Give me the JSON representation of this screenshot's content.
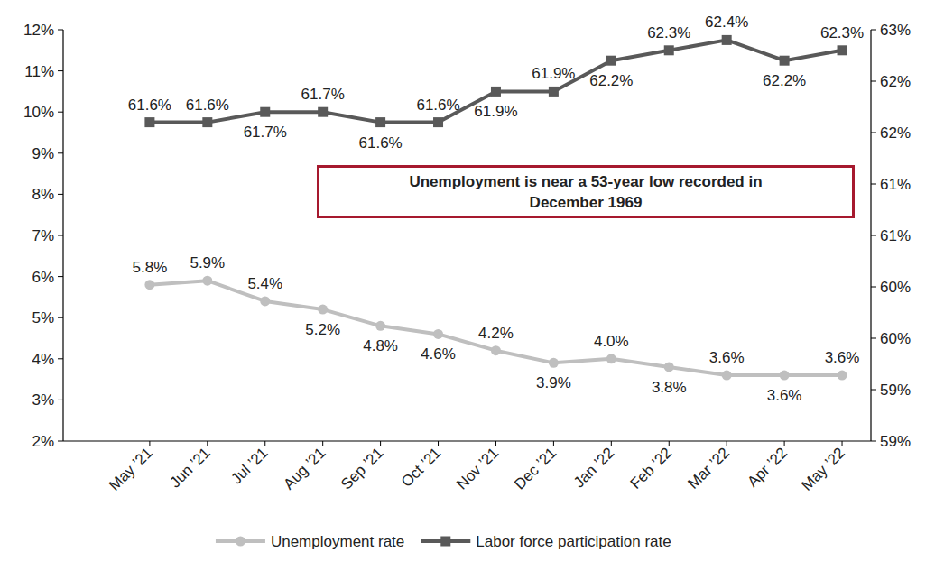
{
  "chart_data": {
    "type": "line",
    "annotation": "Unemployment is near a 53-year low recorded in December 1969",
    "categories": [
      "May ’21",
      "Jun ’21",
      "Jul ’21",
      "Aug ’21",
      "Sep ’21",
      "Oct ’21",
      "Nov ’21",
      "Dec ’21",
      "Jan ’22",
      "Feb ’22",
      "Mar ’22",
      "Apr ’22",
      "May ’22"
    ],
    "series": [
      {
        "name": "Unemployment rate",
        "color": "#bfbfbf",
        "marker": "circle",
        "values": [
          5.8,
          5.9,
          5.4,
          5.2,
          4.8,
          4.6,
          4.2,
          3.9,
          4.0,
          3.8,
          3.6,
          3.6,
          3.6
        ],
        "value_labels": [
          "5.8%",
          "5.9%",
          "5.4%",
          "5.2%",
          "4.8%",
          "4.6%",
          "4.2%",
          "3.9%",
          "4.0%",
          "3.8%",
          "3.6%",
          "3.6%",
          "3.6%"
        ]
      },
      {
        "name": "Labor force participation rate",
        "color": "#595959",
        "marker": "square",
        "axis": "y2",
        "values": [
          61.6,
          61.6,
          61.7,
          61.7,
          61.6,
          61.6,
          61.9,
          61.9,
          62.2,
          62.3,
          62.4,
          62.2,
          62.3
        ],
        "value_labels": [
          "61.6%",
          "61.6%",
          "61.7%",
          "61.7%",
          "61.6%",
          "61.6%",
          "61.9%",
          "61.9%",
          "62.2%",
          "62.3%",
          "62.4%",
          "62.2%",
          "62.3%"
        ]
      }
    ],
    "ylim": [
      2,
      12
    ],
    "yticks": [
      {
        "value": 2,
        "label": "2%"
      },
      {
        "value": 3,
        "label": "3%"
      },
      {
        "value": 4,
        "label": "4%"
      },
      {
        "value": 5,
        "label": "5%"
      },
      {
        "value": 6,
        "label": "6%"
      },
      {
        "value": 7,
        "label": "7%"
      },
      {
        "value": 8,
        "label": "8%"
      },
      {
        "value": 9,
        "label": "9%"
      },
      {
        "value": 10,
        "label": "10%"
      },
      {
        "value": 11,
        "label": "11%"
      },
      {
        "value": 12,
        "label": "12%"
      }
    ],
    "y2lim": [
      58.5,
      62.5
    ],
    "y2ticks": [
      {
        "value": 58.5,
        "label": "59%"
      },
      {
        "value": 59,
        "label": "59%"
      },
      {
        "value": 59.5,
        "label": "60%"
      },
      {
        "value": 60,
        "label": "60%"
      },
      {
        "value": 60.5,
        "label": "61%"
      },
      {
        "value": 61,
        "label": "61%"
      },
      {
        "value": 61.5,
        "label": "62%"
      },
      {
        "value": 62,
        "label": "62%"
      },
      {
        "value": 62.5,
        "label": "63%"
      }
    ],
    "grid": false,
    "legend": "bottom",
    "data_labels": true
  }
}
